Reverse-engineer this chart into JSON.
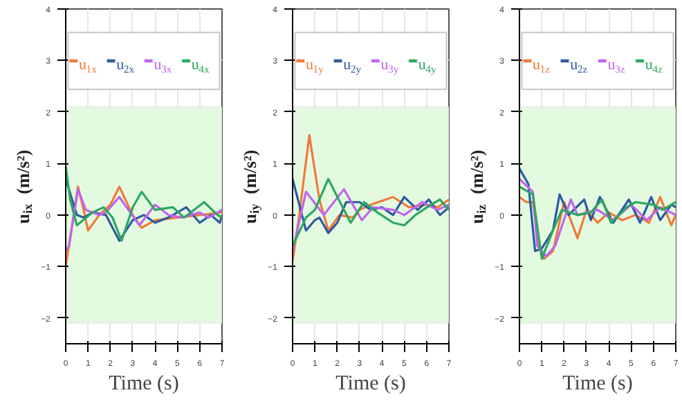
{
  "chart_data": [
    {
      "type": "line",
      "xlabel": "Time (s)",
      "ylabel": "u$_{ix}$ (m/s²)",
      "xlim": [
        0,
        7
      ],
      "ylim": [
        -2.5,
        4
      ],
      "xticks": [
        0,
        1,
        2,
        3,
        4,
        5,
        6,
        7
      ],
      "yticks": [
        -2,
        -1,
        0,
        1,
        2,
        3,
        4
      ],
      "grid": true,
      "legend": "top",
      "bands": [
        {
          "axis": "y",
          "from": -2.1,
          "to": 2.1,
          "color": "#e4fae0"
        }
      ],
      "series": [
        {
          "name": "u$_{1x}$",
          "color": "#f07a3a",
          "x": [
            0,
            0.55,
            0.8,
            1.0,
            1.5,
            2.0,
            2.4,
            3.0,
            3.4,
            4.0,
            5.0,
            6.0,
            7.0
          ],
          "values": [
            -1.0,
            0.55,
            0.1,
            -0.3,
            0.0,
            0.2,
            0.55,
            0.0,
            -0.25,
            -0.1,
            -0.05,
            0.0,
            0.05
          ]
        },
        {
          "name": "u$_{2x}$",
          "color": "#2d5aa0",
          "x": [
            0,
            0.5,
            0.8,
            1.2,
            1.8,
            2.4,
            3.0,
            3.5,
            4.0,
            4.6,
            5.4,
            6.0,
            6.5,
            6.9,
            7.0
          ],
          "values": [
            0.7,
            0.0,
            -0.05,
            0.05,
            0.0,
            -0.5,
            -0.1,
            0.0,
            -0.15,
            -0.05,
            0.15,
            -0.15,
            0.0,
            -0.15,
            0.0
          ]
        },
        {
          "name": "u$_{3x}$",
          "color": "#c064ee",
          "x": [
            0,
            0.15,
            0.55,
            0.9,
            1.5,
            1.8,
            2.4,
            3.3,
            4.0,
            4.6,
            5.2,
            6.0,
            6.4,
            7.0
          ],
          "values": [
            -0.7,
            -0.6,
            0.5,
            0.1,
            0.0,
            0.05,
            0.35,
            -0.2,
            0.2,
            0.0,
            -0.05,
            0.05,
            -0.05,
            0.1
          ]
        },
        {
          "name": "u$_{4x}$",
          "color": "#2aa860",
          "x": [
            0,
            0.2,
            0.5,
            1.2,
            1.7,
            2.1,
            2.5,
            3.0,
            3.4,
            4.0,
            4.8,
            5.3,
            6.2,
            6.8,
            7.0
          ],
          "values": [
            0.95,
            0.3,
            -0.2,
            0.05,
            0.15,
            -0.05,
            -0.5,
            0.15,
            0.45,
            0.1,
            0.15,
            -0.05,
            0.25,
            0.0,
            -0.05
          ]
        }
      ]
    },
    {
      "type": "line",
      "xlabel": "Time (s)",
      "ylabel": "u$_{iy}$ (m/s²)",
      "xlim": [
        0,
        7
      ],
      "ylim": [
        -2.5,
        4
      ],
      "xticks": [
        0,
        1,
        2,
        3,
        4,
        5,
        6,
        7
      ],
      "yticks": [
        -2,
        -1,
        0,
        1,
        2,
        3,
        4
      ],
      "grid": true,
      "legend": "top",
      "bands": [
        {
          "axis": "y",
          "from": -2.1,
          "to": 2.1,
          "color": "#e4fae0"
        }
      ],
      "series": [
        {
          "name": "u$_{1y}$",
          "color": "#f07a3a",
          "x": [
            0,
            0.3,
            0.75,
            1.2,
            1.6,
            2.1,
            2.7,
            3.0,
            3.5,
            4.5,
            5.2,
            6.0,
            6.5,
            7.0
          ],
          "values": [
            -0.9,
            0.0,
            1.55,
            0.3,
            -0.3,
            0.0,
            -0.05,
            0.1,
            0.2,
            0.35,
            0.15,
            0.2,
            0.15,
            0.3
          ]
        },
        {
          "name": "u$_{2y}$",
          "color": "#2d5aa0",
          "x": [
            0,
            0.6,
            1.0,
            1.2,
            1.6,
            2.0,
            2.4,
            3.0,
            3.5,
            4.0,
            4.5,
            5.0,
            5.6,
            6.1,
            6.6,
            7.0
          ],
          "values": [
            0.7,
            -0.3,
            -0.1,
            -0.05,
            -0.35,
            -0.15,
            0.25,
            0.25,
            0.1,
            0.15,
            0.0,
            0.35,
            0.1,
            0.3,
            0.0,
            0.15
          ]
        },
        {
          "name": "u$_{3y}$",
          "color": "#c064ee",
          "x": [
            0,
            0.6,
            1.4,
            2.3,
            3.1,
            3.6,
            4.5,
            5.0,
            5.8,
            6.5,
            7.0
          ],
          "values": [
            -0.7,
            0.45,
            0.0,
            0.5,
            -0.1,
            0.15,
            0.1,
            0.0,
            0.25,
            0.1,
            0.2
          ]
        },
        {
          "name": "u$_{4y}$",
          "color": "#2aa860",
          "x": [
            0,
            0.6,
            1.0,
            1.6,
            2.3,
            2.6,
            3.2,
            3.8,
            4.5,
            5.0,
            5.5,
            6.2,
            6.6,
            7.0
          ],
          "values": [
            -0.6,
            -0.05,
            0.1,
            0.7,
            0.1,
            -0.15,
            0.25,
            0.05,
            -0.15,
            -0.2,
            0.0,
            0.2,
            0.3,
            0.1
          ]
        }
      ]
    },
    {
      "type": "line",
      "xlabel": "Time (s)",
      "ylabel": "u$_{iz}$ (m/s²)",
      "xlim": [
        0,
        7
      ],
      "ylim": [
        -2.5,
        4
      ],
      "xticks": [
        0,
        1,
        2,
        3,
        4,
        5,
        6,
        7
      ],
      "yticks": [
        -2,
        -1,
        0,
        1,
        2,
        3,
        4
      ],
      "grid": true,
      "legend": "top",
      "bands": [
        {
          "axis": "y",
          "from": -2.1,
          "to": 2.1,
          "color": "#e4fae0"
        }
      ],
      "series": [
        {
          "name": "u$_{1z}$",
          "color": "#f07a3a",
          "x": [
            0,
            0.3,
            0.6,
            0.9,
            1.1,
            1.5,
            2.0,
            2.6,
            3.0,
            3.5,
            4.0,
            4.6,
            5.2,
            5.8,
            6.3,
            6.8,
            7.0
          ],
          "values": [
            0.35,
            0.25,
            0.25,
            -0.6,
            -0.85,
            -0.7,
            0.25,
            -0.45,
            0.1,
            -0.15,
            0.05,
            -0.1,
            0.0,
            -0.15,
            0.35,
            -0.2,
            0.0
          ]
        },
        {
          "name": "u$_{2z}$",
          "color": "#2d5aa0",
          "x": [
            0,
            0.4,
            0.7,
            1.0,
            1.5,
            1.8,
            2.2,
            2.9,
            3.2,
            3.6,
            4.2,
            4.9,
            5.4,
            5.9,
            6.3,
            6.8,
            7.0
          ],
          "values": [
            0.9,
            0.6,
            -0.7,
            -0.65,
            -0.3,
            0.4,
            0.0,
            0.3,
            -0.1,
            0.35,
            -0.15,
            0.3,
            -0.15,
            0.35,
            -0.1,
            0.2,
            0.15
          ]
        },
        {
          "name": "u$_{3z}$",
          "color": "#c064ee",
          "x": [
            0,
            0.6,
            0.8,
            1.2,
            1.6,
            2.3,
            2.6,
            3.5,
            4.2,
            5.0,
            5.7,
            6.3,
            7.0
          ],
          "values": [
            0.7,
            0.45,
            -0.6,
            -0.8,
            -0.6,
            0.3,
            0.0,
            0.1,
            -0.1,
            0.2,
            -0.1,
            0.15,
            0.0
          ]
        },
        {
          "name": "u$_{4z}$",
          "color": "#2aa860",
          "x": [
            0,
            0.6,
            1.0,
            1.5,
            1.9,
            2.6,
            3.2,
            3.7,
            4.1,
            4.8,
            5.2,
            6.0,
            6.4,
            7.0
          ],
          "values": [
            0.55,
            0.4,
            -0.85,
            -0.3,
            0.1,
            0.0,
            0.05,
            0.3,
            -0.15,
            0.15,
            0.25,
            0.2,
            0.1,
            0.25
          ]
        }
      ]
    }
  ]
}
